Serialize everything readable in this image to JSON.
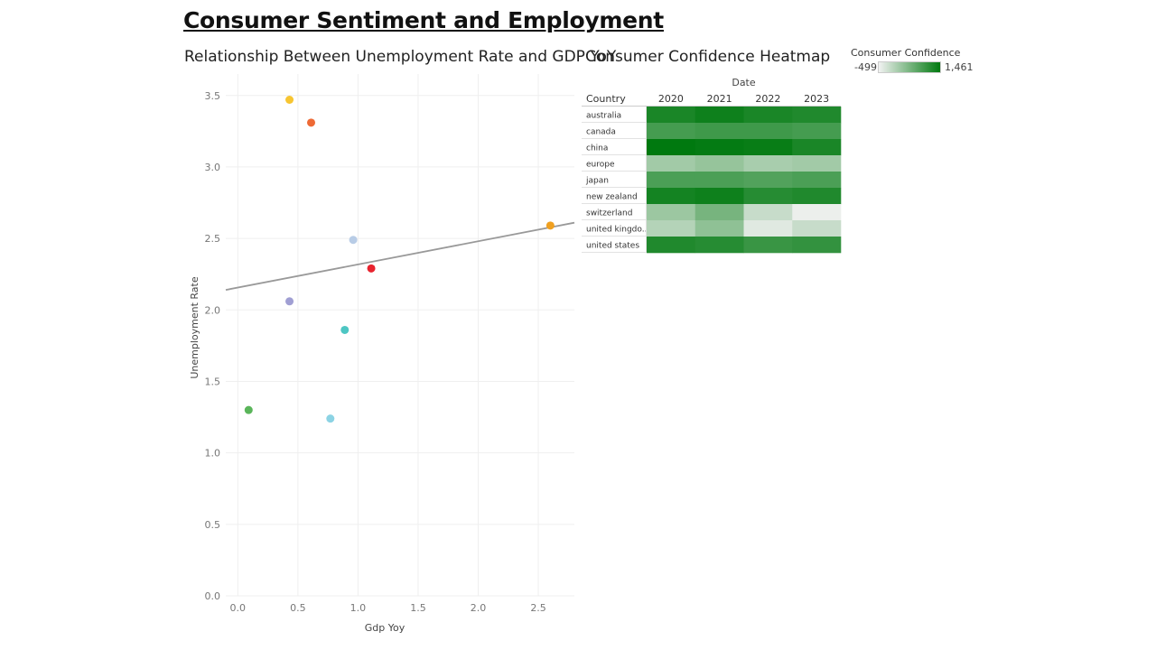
{
  "dashboard": {
    "title": "Consumer Sentiment and Employment"
  },
  "legend": {
    "title": "Consumer Confidence",
    "min_label": "-499",
    "max_label": "1,461",
    "color_low": "#f2f2f2",
    "color_high": "#00790f"
  },
  "chart_data": [
    {
      "type": "scatter",
      "title": "Relationship Between Unemployment Rate and GDP YoY",
      "xlabel": "Gdp Yoy",
      "ylabel": "Unemployment Rate",
      "xlim": [
        -0.1,
        2.8
      ],
      "ylim": [
        0,
        3.65
      ],
      "x_ticks": [
        "0.0",
        "0.5",
        "1.0",
        "1.5",
        "2.0",
        "2.5"
      ],
      "y_ticks": [
        "0.0",
        "0.5",
        "1.0",
        "1.5",
        "2.0",
        "2.5",
        "3.0",
        "3.5"
      ],
      "grid": true,
      "points": [
        {
          "x": 0.43,
          "y": 3.47,
          "color": "#f7c531"
        },
        {
          "x": 0.61,
          "y": 3.31,
          "color": "#ee6a35"
        },
        {
          "x": 0.96,
          "y": 2.49,
          "color": "#b8cce6"
        },
        {
          "x": 1.11,
          "y": 2.29,
          "color": "#e8232e"
        },
        {
          "x": 0.43,
          "y": 2.06,
          "color": "#a09fd3"
        },
        {
          "x": 0.89,
          "y": 1.86,
          "color": "#4dc6c3"
        },
        {
          "x": 0.09,
          "y": 1.3,
          "color": "#5ab55a"
        },
        {
          "x": 0.77,
          "y": 1.24,
          "color": "#8cd3e4"
        },
        {
          "x": 2.6,
          "y": 2.59,
          "color": "#f0a020"
        }
      ],
      "trend_line": {
        "x": [
          -0.1,
          2.8
        ],
        "y": [
          2.14,
          2.61
        ],
        "color": "#999999"
      }
    },
    {
      "type": "heatmap",
      "title": "Consumer Confidence Heatmap",
      "column_group_label": "Date",
      "row_header": "Country",
      "columns": [
        "2020",
        "2021",
        "2022",
        "2023"
      ],
      "rows": [
        "australia",
        "canada",
        "china",
        "europe",
        "japan",
        "new zealand",
        "switzerland",
        "united kingdo..",
        "united states"
      ],
      "range": [
        -499,
        1461
      ],
      "values": [
        [
          1250,
          1350,
          1250,
          1200
        ],
        [
          900,
          950,
          950,
          900
        ],
        [
          1461,
          1430,
          1400,
          1250
        ],
        [
          150,
          250,
          100,
          150
        ],
        [
          850,
          850,
          800,
          850
        ],
        [
          1300,
          1350,
          1150,
          1200
        ],
        [
          200,
          500,
          -150,
          -450
        ],
        [
          0,
          300,
          -350,
          -150
        ],
        [
          1200,
          1150,
          1000,
          1050
        ]
      ]
    }
  ]
}
